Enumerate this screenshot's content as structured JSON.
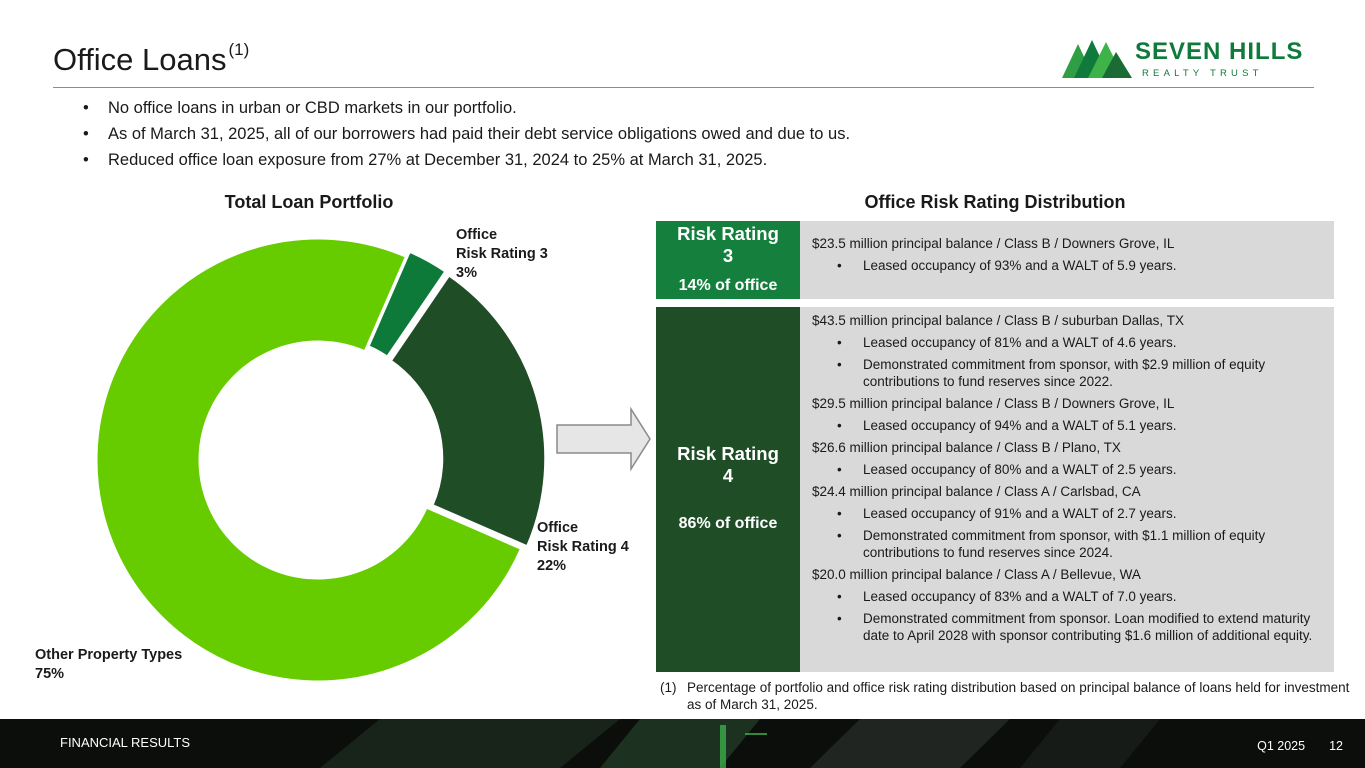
{
  "header": {
    "title": "Office Loans",
    "title_footnote_marker": "(1)"
  },
  "logo": {
    "name": "SEVEN HILLS",
    "tagline": "REALTY TRUST"
  },
  "bullets": [
    "No office loans in urban or CBD markets in our portfolio.",
    "As of March 31, 2025, all of our borrowers had paid their debt service obligations owed and due to us.",
    "Reduced office loan exposure from 27% at December 31, 2024 to 25% at March 31, 2025."
  ],
  "chart_data": {
    "type": "pie",
    "title": "Total Loan Portfolio",
    "donut": true,
    "slices": [
      {
        "label_line1": "Office",
        "label_line2": "Risk Rating 3",
        "value_label": "3%",
        "value": 3,
        "color": "#0d7a3a"
      },
      {
        "label_line1": "Office",
        "label_line2": "Risk Rating 4",
        "value_label": "22%",
        "value": 22,
        "color": "#1e4d26"
      },
      {
        "label_line1": "Other Property Types",
        "label_line2": "",
        "value_label": "75%",
        "value": 75,
        "color": "#66cc00"
      }
    ]
  },
  "distribution": {
    "title": "Office Risk Rating Distribution",
    "rr3": {
      "title_line1": "Risk Rating",
      "title_line2": "3",
      "pct": "14% of office",
      "color": "#15803d",
      "lines": [
        {
          "type": "main",
          "text": "$23.5 million principal balance / Class B / Downers Grove, IL"
        },
        {
          "type": "sub",
          "text": "Leased occupancy of 93% and a WALT of 5.9 years."
        }
      ]
    },
    "rr4": {
      "title_line1": "Risk Rating",
      "title_line2": "4",
      "pct": "86% of office",
      "color": "#1e4d26",
      "lines": [
        {
          "type": "main",
          "text": "$43.5 million principal balance / Class B / suburban Dallas, TX"
        },
        {
          "type": "sub",
          "text": "Leased occupancy of 81% and a WALT of 4.6 years."
        },
        {
          "type": "sub",
          "text": "Demonstrated commitment from sponsor, with $2.9 million of equity contributions to fund reserves since 2022."
        },
        {
          "type": "main",
          "text": "$29.5 million principal balance / Class B / Downers Grove, IL"
        },
        {
          "type": "sub",
          "text": "Leased occupancy of 94% and a WALT of 5.1 years."
        },
        {
          "type": "main",
          "text": "$26.6 million principal balance / Class B / Plano, TX"
        },
        {
          "type": "sub",
          "text": "Leased occupancy of 80% and a WALT of 2.5 years."
        },
        {
          "type": "main",
          "text": "$24.4 million principal balance / Class A / Carlsbad, CA"
        },
        {
          "type": "sub",
          "text": "Leased occupancy of 91% and a WALT of 2.7 years."
        },
        {
          "type": "sub",
          "text": "Demonstrated commitment from sponsor, with $1.1 million of equity contributions to fund reserves since 2024."
        },
        {
          "type": "main",
          "text": "$20.0 million principal balance / Class A / Bellevue, WA"
        },
        {
          "type": "sub",
          "text": "Leased occupancy of 83% and a WALT of 7.0 years."
        },
        {
          "type": "sub",
          "text": "Demonstrated commitment from sponsor. Loan modified to extend maturity date to April 2028 with sponsor contributing $1.6 million of additional equity."
        }
      ]
    }
  },
  "footnote": {
    "marker": "(1)",
    "text": "Percentage of portfolio and office risk rating distribution based on principal balance of loans held for investment as of March 31, 2025."
  },
  "footer": {
    "section": "FINANCIAL RESULTS",
    "period": "Q1 2025",
    "page": "12"
  }
}
